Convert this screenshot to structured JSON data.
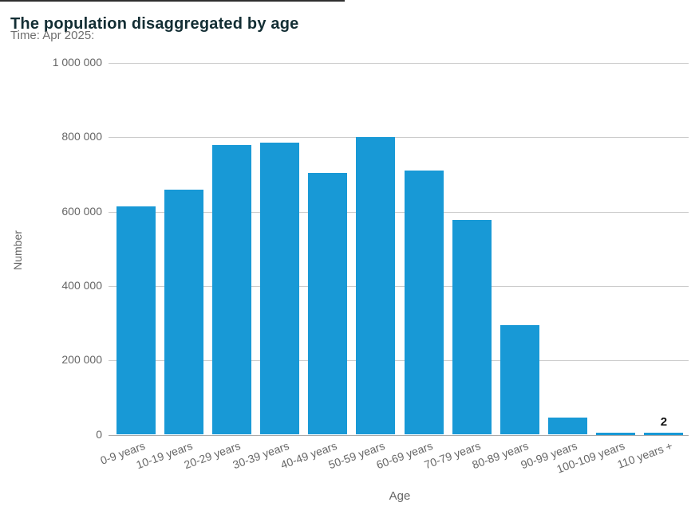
{
  "chart_data": {
    "type": "bar",
    "title": "The population disaggregated by age",
    "subtitle": "Time: Apr 2025:",
    "xlabel": "Age",
    "ylabel": "Number",
    "categories": [
      "0-9 years",
      "10-19 years",
      "20-29 years",
      "30-39 years",
      "40-49 years",
      "50-59 years",
      "60-69 years",
      "70-79 years",
      "80-89 years",
      "90-99 years",
      "100-109 years",
      "110 years +"
    ],
    "values": [
      615000,
      660000,
      780000,
      785000,
      705000,
      800000,
      710000,
      578000,
      295000,
      46000,
      5000,
      2
    ],
    "ylim": [
      0,
      1000000
    ],
    "yticks": [
      0,
      200000,
      400000,
      600000,
      800000,
      1000000
    ],
    "ytick_labels": [
      "0",
      "200 000",
      "400 000",
      "600 000",
      "800 000",
      "1 000 000"
    ],
    "grid": true,
    "legend": "none",
    "bar_color": "#1899d6",
    "grid_color": "#cccccc",
    "axis_line_color": "#a9a9a9",
    "data_labels": [
      {
        "index": 11,
        "text": "2"
      }
    ]
  }
}
